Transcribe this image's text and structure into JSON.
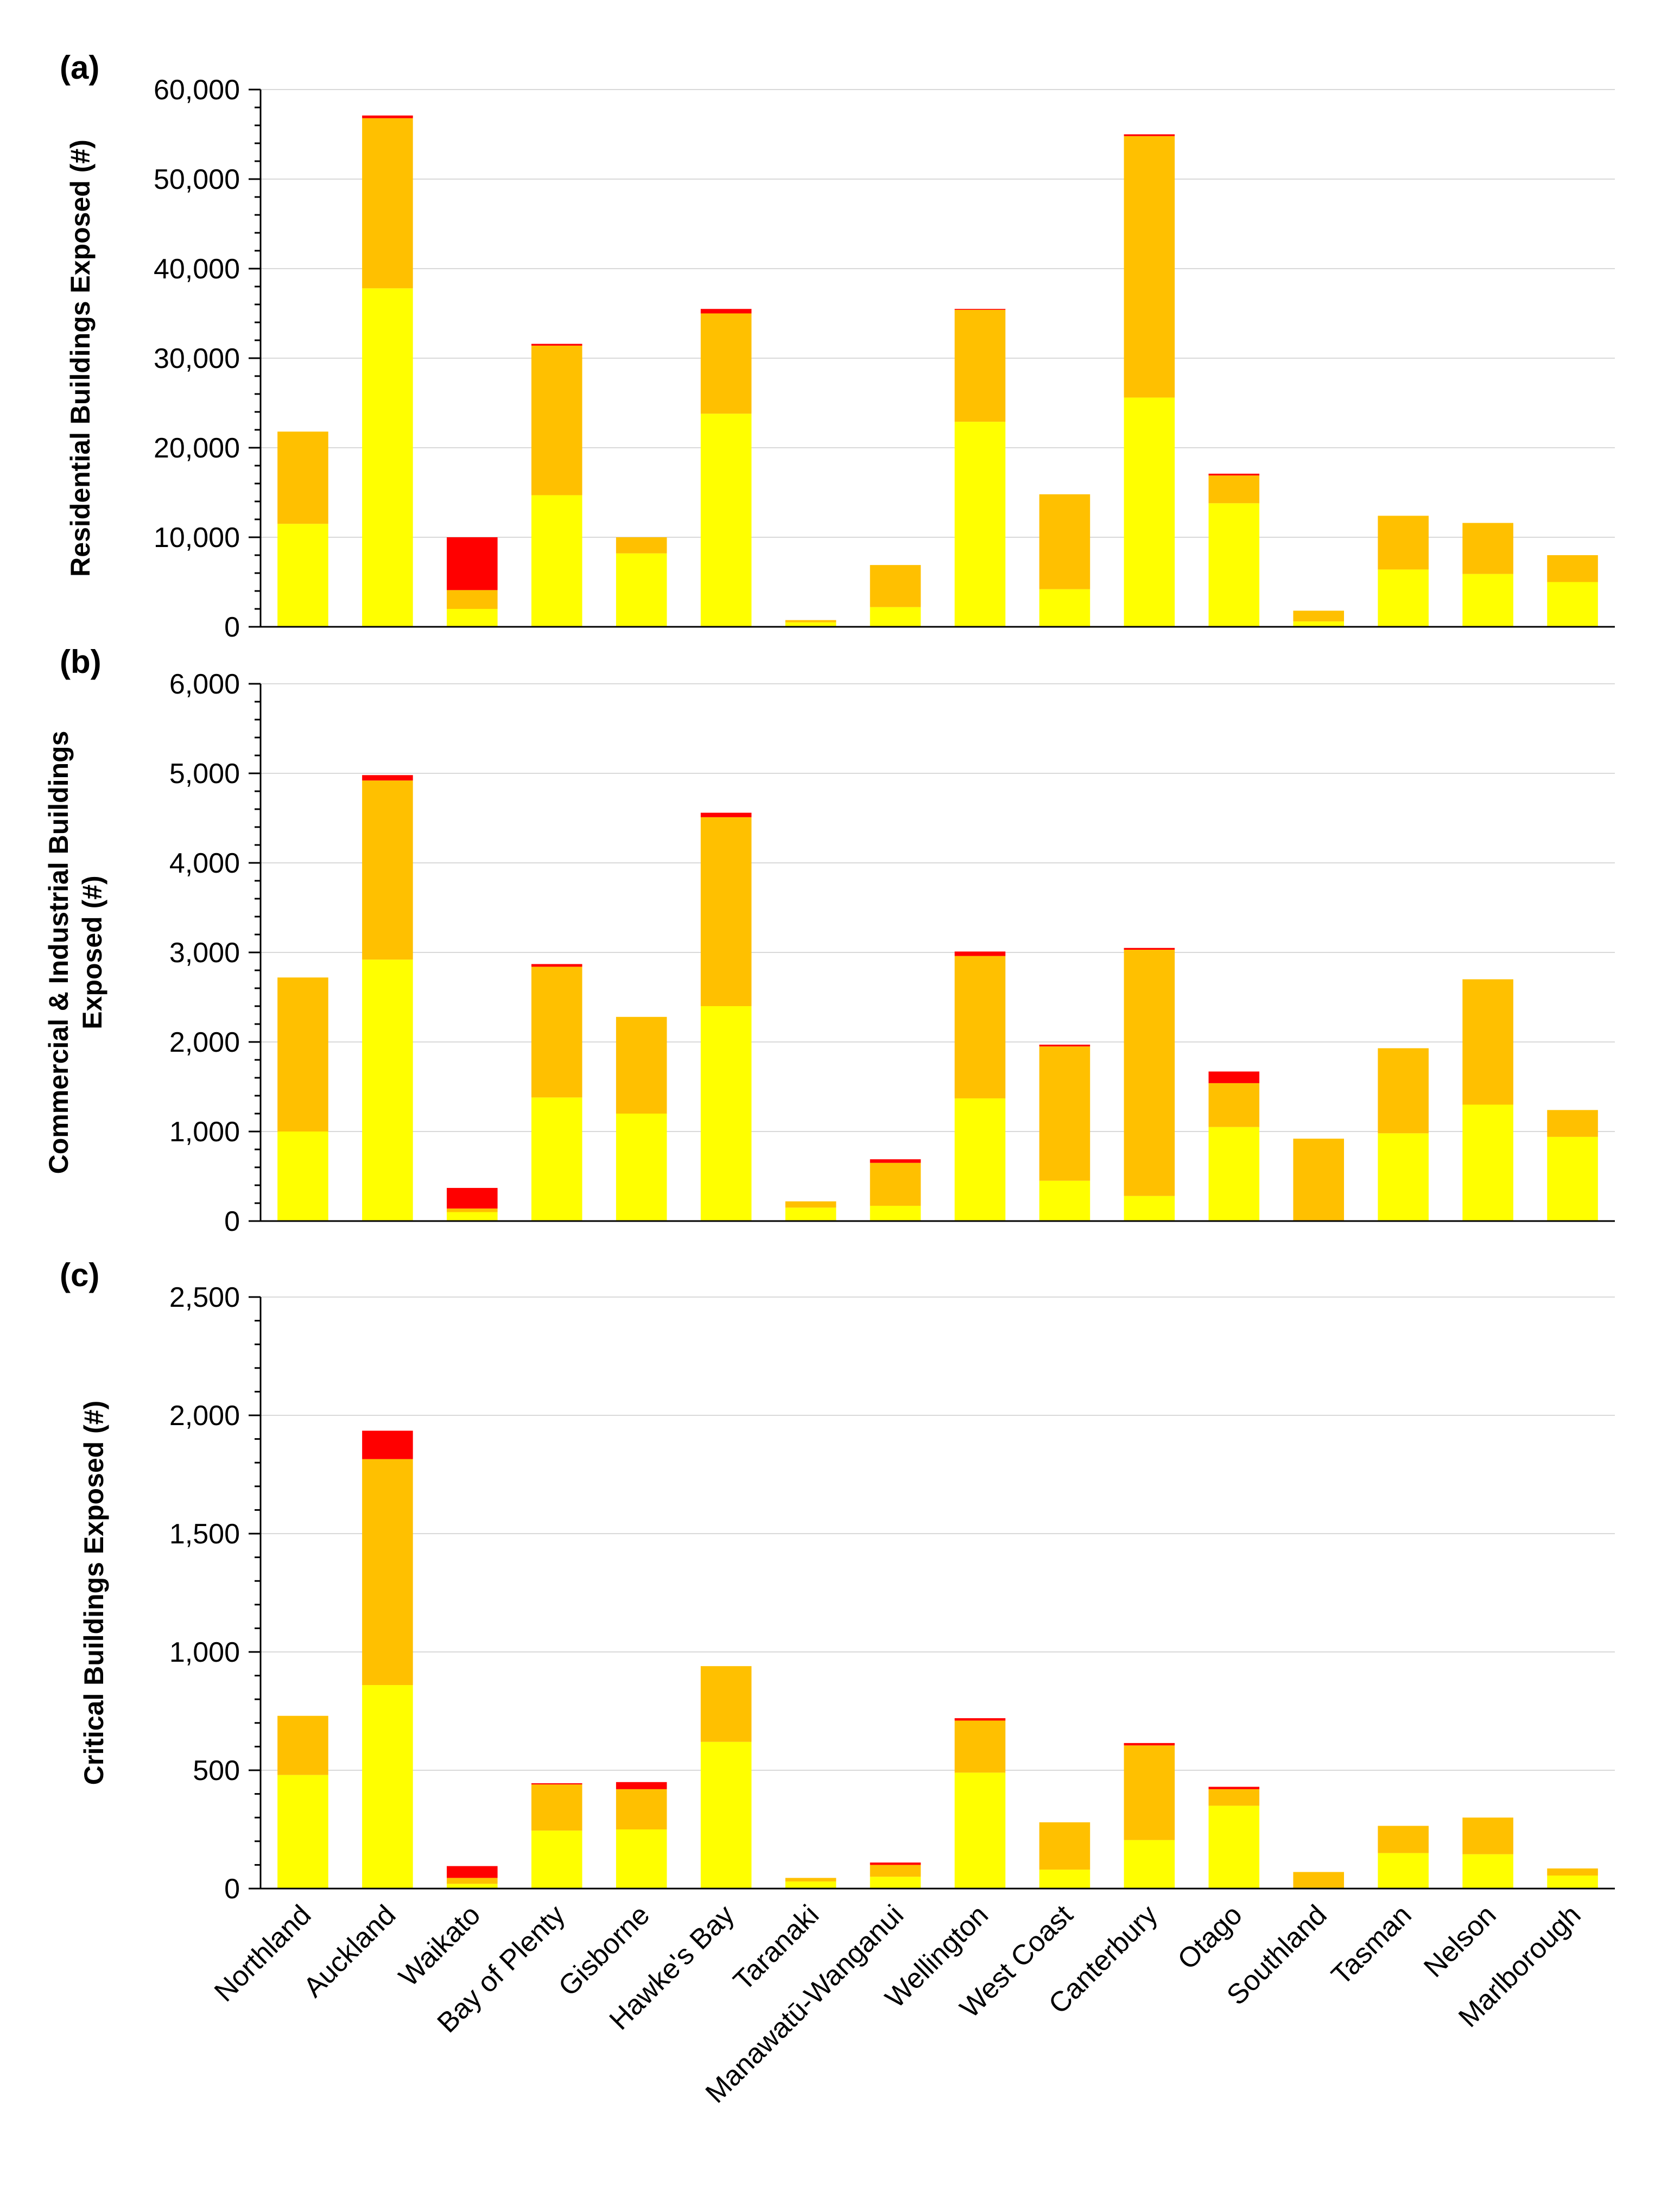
{
  "colors": {
    "low": "#ffff00",
    "medium": "#ffc000",
    "high": "#ff0000"
  },
  "chart_data": [
    {
      "type": "bar",
      "stacked": true,
      "panel": "(a)",
      "ylabel": "Residential Buildings Exposed (#)",
      "ylim": [
        0,
        60000
      ],
      "yticks": [
        "0",
        "10,000",
        "20,000",
        "30,000",
        "40,000",
        "50,000",
        "60,000"
      ],
      "categories": [
        "Northland",
        "Auckland",
        "Waikato",
        "Bay of Plenty",
        "Gisborne",
        "Hawke's Bay",
        "Taranaki",
        "Manawatū-Wanganui",
        "Wellington",
        "West Coast",
        "Canterbury",
        "Otago",
        "Southland",
        "Tasman",
        "Nelson",
        "Marlborough"
      ],
      "series": [
        {
          "color": "#ffff00",
          "values": [
            11500,
            37800,
            2000,
            14700,
            8200,
            23800,
            500,
            2200,
            22900,
            4200,
            25600,
            13800,
            600,
            6400,
            5900,
            5000
          ]
        },
        {
          "color": "#ffc000",
          "values": [
            10300,
            19000,
            2100,
            16700,
            1800,
            11200,
            250,
            4700,
            12500,
            10600,
            29200,
            3100,
            1200,
            6000,
            5700,
            3000
          ]
        },
        {
          "color": "#ff0000",
          "values": [
            0,
            300,
            5900,
            200,
            0,
            500,
            0,
            0,
            100,
            0,
            200,
            200,
            0,
            0,
            0,
            0
          ]
        }
      ]
    },
    {
      "type": "bar",
      "stacked": true,
      "panel": "(b)",
      "ylabel": [
        "Commercial & Industrial Buildings",
        "Exposed (#)"
      ],
      "ylim": [
        0,
        6000
      ],
      "yticks": [
        "0",
        "1,000",
        "2,000",
        "3,000",
        "4,000",
        "5,000",
        "6,000"
      ],
      "categories": [
        "Northland",
        "Auckland",
        "Waikato",
        "Bay of Plenty",
        "Gisborne",
        "Hawke's Bay",
        "Taranaki",
        "Manawatū-Wanganui",
        "Wellington",
        "West Coast",
        "Canterbury",
        "Otago",
        "Southland",
        "Tasman",
        "Nelson",
        "Marlborough"
      ],
      "series": [
        {
          "color": "#ffff00",
          "values": [
            1000,
            2920,
            100,
            1380,
            1200,
            2400,
            150,
            170,
            1370,
            450,
            280,
            1050,
            0,
            980,
            1300,
            940
          ]
        },
        {
          "color": "#ffc000",
          "values": [
            1720,
            2000,
            40,
            1460,
            1080,
            2110,
            70,
            480,
            1590,
            1500,
            2750,
            490,
            920,
            950,
            1400,
            300
          ]
        },
        {
          "color": "#ff0000",
          "values": [
            0,
            60,
            230,
            30,
            0,
            50,
            0,
            40,
            50,
            20,
            20,
            130,
            0,
            0,
            0,
            0
          ]
        }
      ]
    },
    {
      "type": "bar",
      "stacked": true,
      "panel": "(c)",
      "ylabel": "Critical Buildings Exposed (#)",
      "ylim": [
        0,
        2500
      ],
      "yticks": [
        "0",
        "500",
        "1,000",
        "1,500",
        "2,000",
        "2,500"
      ],
      "categories": [
        "Northland",
        "Auckland",
        "Waikato",
        "Bay of Plenty",
        "Gisborne",
        "Hawke's Bay",
        "Taranaki",
        "Manawatū-Wanganui",
        "Wellington",
        "West Coast",
        "Canterbury",
        "Otago",
        "Southland",
        "Tasman",
        "Nelson",
        "Marlborough"
      ],
      "series": [
        {
          "color": "#ffff00",
          "values": [
            480,
            860,
            20,
            245,
            250,
            620,
            30,
            50,
            490,
            80,
            205,
            350,
            0,
            150,
            145,
            55
          ]
        },
        {
          "color": "#ffc000",
          "values": [
            250,
            955,
            25,
            195,
            170,
            320,
            15,
            50,
            220,
            200,
            400,
            70,
            70,
            115,
            155,
            30
          ]
        },
        {
          "color": "#ff0000",
          "values": [
            0,
            120,
            50,
            5,
            30,
            0,
            0,
            10,
            10,
            0,
            10,
            10,
            0,
            0,
            0,
            0
          ]
        }
      ]
    }
  ]
}
